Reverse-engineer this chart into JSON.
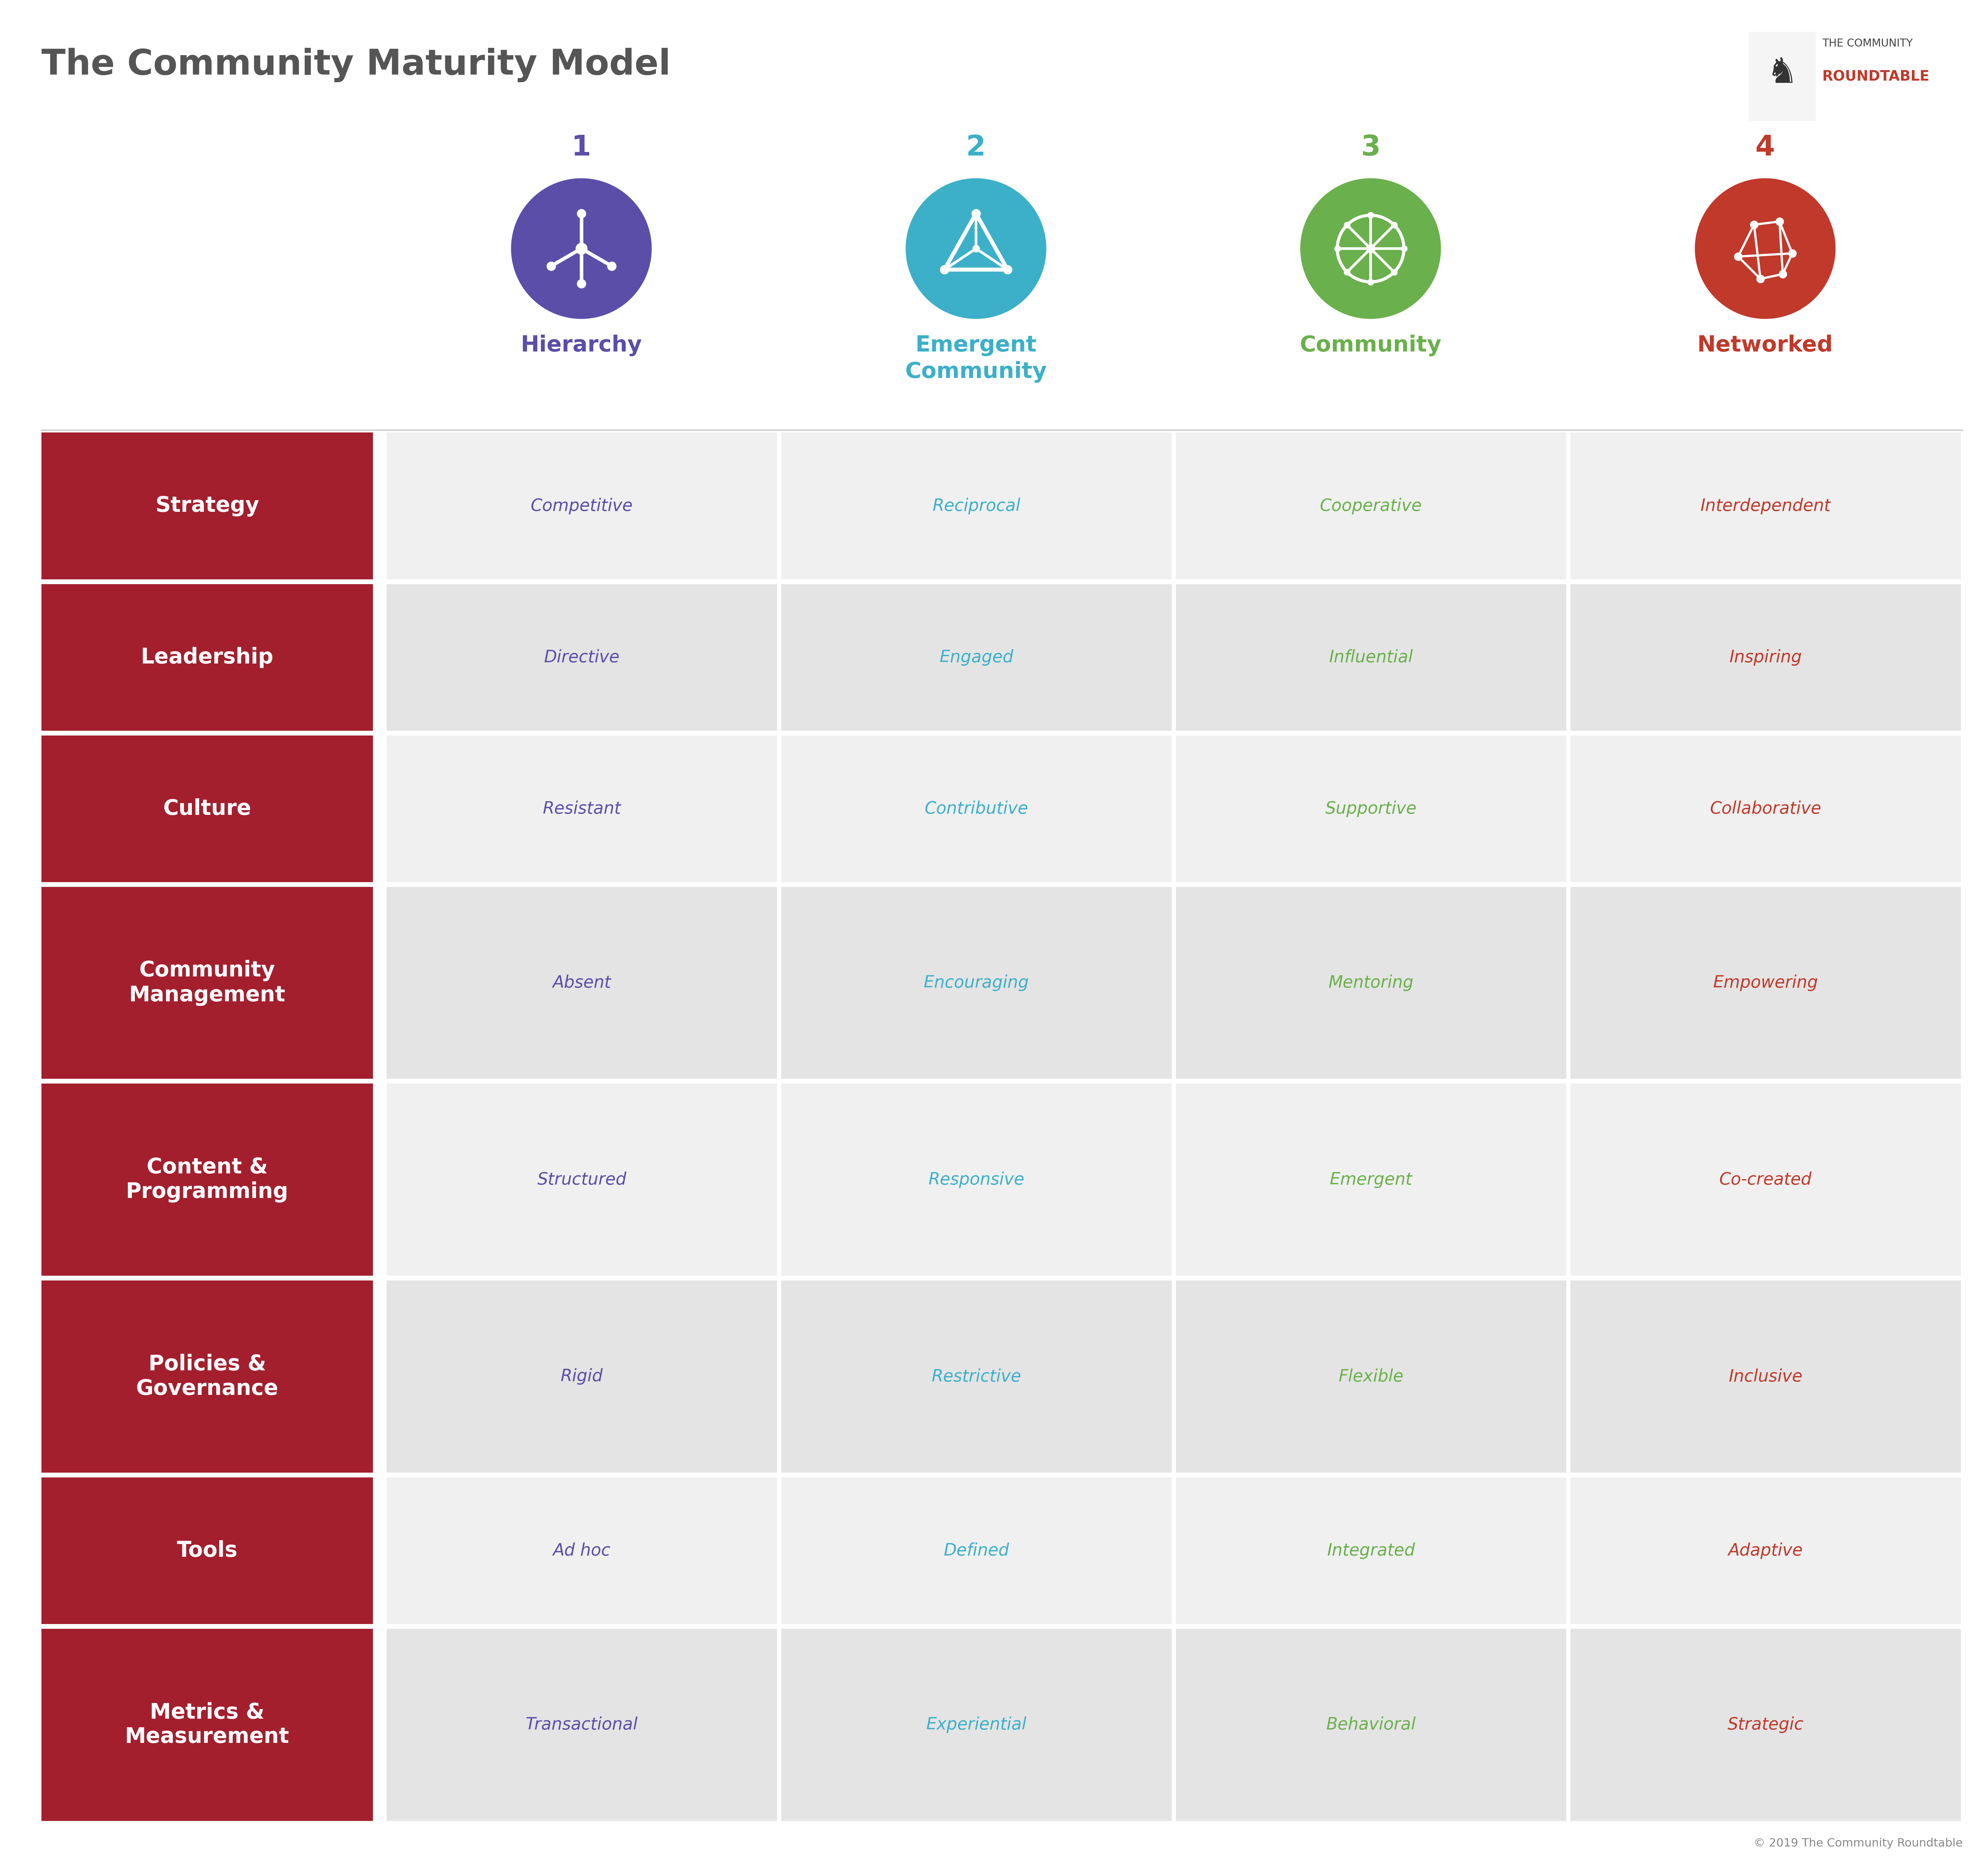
{
  "title": "The Community Maturity Model",
  "title_color": "#555555",
  "background_color": "#ffffff",
  "header_bg_color": "#a31f2e",
  "header_text_color": "#ffffff",
  "row_bg_A": "#f0f0f0",
  "row_bg_B": "#e4e4e4",
  "stage_numbers": [
    "1",
    "2",
    "3",
    "4"
  ],
  "stage_number_colors": [
    "#5b4ea8",
    "#3cb0c8",
    "#6ab04c",
    "#c0392b"
  ],
  "stage_names": [
    "Hierarchy",
    "Emergent\nCommunity",
    "Community",
    "Networked"
  ],
  "stage_name_colors": [
    "#5b4ea8",
    "#3cb0c8",
    "#6ab04c",
    "#c0392b"
  ],
  "stage_circle_colors": [
    "#5b4ea8",
    "#3cb0c8",
    "#6ab04c",
    "#c0392b"
  ],
  "row_labels": [
    "Strategy",
    "Leadership",
    "Culture",
    "Community\nManagement",
    "Content &\nProgramming",
    "Policies &\nGovernance",
    "Tools",
    "Metrics &\nMeasurement"
  ],
  "row_label_fontsize": 48,
  "cell_fontsize": 38,
  "table_data": [
    [
      "Competitive",
      "Reciprocal",
      "Cooperative",
      "Interdependent"
    ],
    [
      "Directive",
      "Engaged",
      "Influential",
      "Inspiring"
    ],
    [
      "Resistant",
      "Contributive",
      "Supportive",
      "Collaborative"
    ],
    [
      "Absent",
      "Encouraging",
      "Mentoring",
      "Empowering"
    ],
    [
      "Structured",
      "Responsive",
      "Emergent",
      "Co-created"
    ],
    [
      "Rigid",
      "Restrictive",
      "Flexible",
      "Inclusive"
    ],
    [
      "Ad hoc",
      "Defined",
      "Integrated",
      "Adaptive"
    ],
    [
      "Transactional",
      "Experiential",
      "Behavioral",
      "Strategic"
    ]
  ],
  "col_colors": [
    "#5b4ea8",
    "#3cb0c8",
    "#6ab04c",
    "#c0392b"
  ],
  "copyright_text": "© 2019 The Community Roundtable",
  "copyright_color": "#888888",
  "copyright_fontsize": 26,
  "title_fontsize": 80,
  "stage_num_fontsize": 64,
  "stage_name_fontsize": 50
}
